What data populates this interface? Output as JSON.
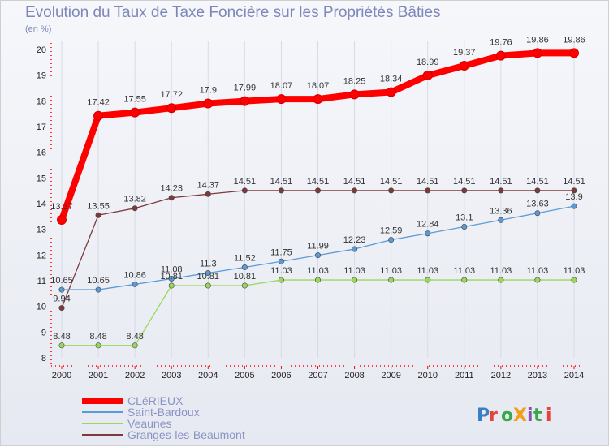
{
  "header": {
    "title": "Evolution du Taux de Taxe Foncière sur les Propriétés Bâties",
    "unit": "(en %)"
  },
  "logo": {
    "text": "ProXiti"
  },
  "chart_data": {
    "type": "line",
    "title": "Evolution du Taux de Taxe Foncière sur les Propriétés Bâties",
    "ylabel": "(en %)",
    "xlabel": "",
    "x": [
      2000,
      2001,
      2002,
      2003,
      2004,
      2005,
      2006,
      2007,
      2008,
      2009,
      2010,
      2011,
      2012,
      2013,
      2014
    ],
    "ylim": [
      8,
      20
    ],
    "yticks": [
      8,
      9,
      10,
      11,
      12,
      13,
      14,
      15,
      16,
      17,
      18,
      19,
      20
    ],
    "grid": true,
    "legend": "bottom-left",
    "series": [
      {
        "name": "CLéRIEUX",
        "color": "#ff0000",
        "values": [
          13.37,
          17.42,
          17.55,
          17.72,
          17.9,
          17.99,
          18.07,
          18.07,
          18.25,
          18.34,
          18.99,
          19.37,
          19.76,
          19.86,
          19.86
        ],
        "labels": [
          "13.37",
          "17.42",
          "17.55",
          "17.72",
          "17.9",
          "17.99",
          "18.07",
          "18.07",
          "18.25",
          "18.34",
          "18.99",
          "19.37",
          "19.76",
          "19.86",
          "19.86"
        ]
      },
      {
        "name": "Saint-Bardoux",
        "color": "#5b9bd5",
        "values": [
          10.65,
          10.65,
          10.86,
          11.08,
          11.3,
          11.52,
          11.75,
          11.99,
          12.23,
          12.59,
          12.84,
          13.1,
          13.36,
          13.63,
          13.9
        ],
        "labels": [
          "10.65",
          "10.65",
          "10.86",
          "11.08",
          "11.3",
          "11.52",
          "11.75",
          "11.99",
          "12.23",
          "12.59",
          "12.84",
          "13.1",
          "13.36",
          "13.63",
          "13.9"
        ]
      },
      {
        "name": "Veaunes",
        "color": "#99d85c",
        "values": [
          8.48,
          8.48,
          8.48,
          10.81,
          10.81,
          10.81,
          11.03,
          11.03,
          11.03,
          11.03,
          11.03,
          11.03,
          11.03,
          11.03,
          11.03
        ],
        "labels": [
          "8.48",
          "8.48",
          "8.48",
          "10.81",
          "10.81",
          "10.81",
          "11.03",
          "11.03",
          "11.03",
          "11.03",
          "11.03",
          "11.03",
          "11.03",
          "11.03",
          "11.03"
        ]
      },
      {
        "name": "Granges-les-Beaumont",
        "color": "#7b3b3b",
        "values": [
          9.94,
          13.55,
          13.82,
          14.23,
          14.37,
          14.51,
          14.51,
          14.51,
          14.51,
          14.51,
          14.51,
          14.51,
          14.51,
          14.51,
          14.51
        ],
        "labels": [
          "9.94",
          "13.55",
          "13.82",
          "14.23",
          "14.37",
          "14.51",
          "14.51",
          "14.51",
          "14.51",
          "14.51",
          "14.51",
          "14.51",
          "14.51",
          "14.51",
          "14.51"
        ]
      }
    ]
  }
}
